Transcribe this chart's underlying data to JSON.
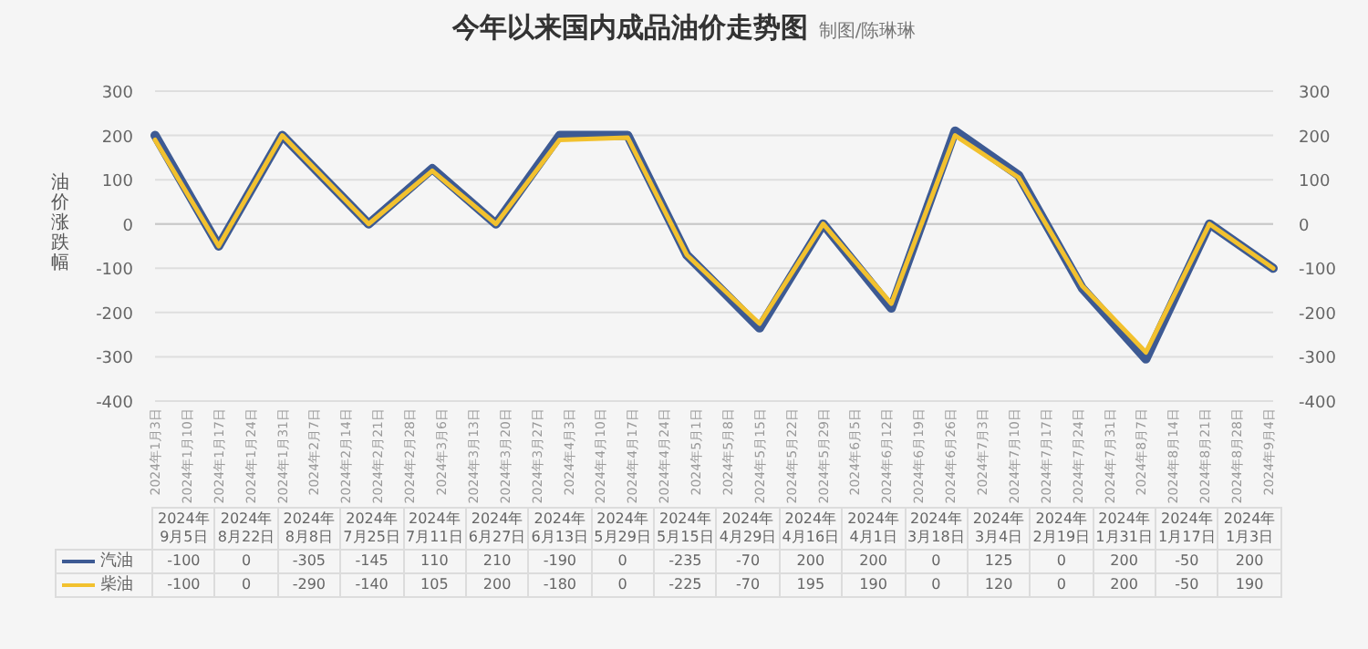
{
  "chart_data": [
    {
      "type": "line",
      "title": "今年以来国内成品油价走势图",
      "subtitle": "制图/陈琳琳",
      "ylabel": "油价涨跌幅",
      "x": [
        "2024-01-03",
        "2024-01-17",
        "2024-01-31",
        "2024-02-19",
        "2024-03-04",
        "2024-03-18",
        "2024-04-01",
        "2024-04-16",
        "2024-04-29",
        "2024-05-15",
        "2024-05-29",
        "2024-06-13",
        "2024-06-27",
        "2024-07-11",
        "2024-07-25",
        "2024-08-08",
        "2024-08-22",
        "2024-09-05"
      ],
      "series": [
        {
          "color": "#3d5a93",
          "values": [
            200,
            -50,
            200,
            0,
            125,
            0,
            200,
            200,
            -70,
            -235,
            0,
            -190,
            210,
            110,
            -145,
            -305,
            0,
            -100
          ]
        },
        {
          "color": "#f2c12e",
          "values": [
            190,
            -50,
            200,
            0,
            120,
            0,
            190,
            195,
            -70,
            -225,
            0,
            -180,
            200,
            105,
            -140,
            -290,
            0,
            -100
          ]
        }
      ],
      "xlim": [
        "2024-01-03",
        "2024-09-05"
      ],
      "xticks": [
        {
          "value": "2024-01-03",
          "label": "2024年1月3日"
        },
        {
          "value": "2024-01-10",
          "label": "2024年1月10日"
        },
        {
          "value": "2024-01-17",
          "label": "2024年1月17日"
        },
        {
          "value": "2024-01-24",
          "label": "2024年1月24日"
        },
        {
          "value": "2024-01-31",
          "label": "2024年1月31日"
        },
        {
          "value": "2024-02-07",
          "label": "2024年2月7日"
        },
        {
          "value": "2024-02-14",
          "label": "2024年2月14日"
        },
        {
          "value": "2024-02-21",
          "label": "2024年2月21日"
        },
        {
          "value": "2024-02-28",
          "label": "2024年2月28日"
        },
        {
          "value": "2024-03-06",
          "label": "2024年3月6日"
        },
        {
          "value": "2024-03-13",
          "label": "2024年3月13日"
        },
        {
          "value": "2024-03-20",
          "label": "2024年3月20日"
        },
        {
          "value": "2024-03-27",
          "label": "2024年3月27日"
        },
        {
          "value": "2024-04-03",
          "label": "2024年4月3日"
        },
        {
          "value": "2024-04-10",
          "label": "2024年4月10日"
        },
        {
          "value": "2024-04-17",
          "label": "2024年4月17日"
        },
        {
          "value": "2024-04-24",
          "label": "2024年4月24日"
        },
        {
          "value": "2024-05-01",
          "label": "2024年5月1日"
        },
        {
          "value": "2024-05-08",
          "label": "2024年5月8日"
        },
        {
          "value": "2024-05-15",
          "label": "2024年5月15日"
        },
        {
          "value": "2024-05-22",
          "label": "2024年5月22日"
        },
        {
          "value": "2024-05-29",
          "label": "2024年5月29日"
        },
        {
          "value": "2024-06-05",
          "label": "2024年6月5日"
        },
        {
          "value": "2024-06-12",
          "label": "2024年6月12日"
        },
        {
          "value": "2024-06-19",
          "label": "2024年6月19日"
        },
        {
          "value": "2024-06-26",
          "label": "2024年6月26日"
        },
        {
          "value": "2024-07-03",
          "label": "2024年7月3日"
        },
        {
          "value": "2024-07-10",
          "label": "2024年7月10日"
        },
        {
          "value": "2024-07-17",
          "label": "2024年7月17日"
        },
        {
          "value": "2024-07-24",
          "label": "2024年7月24日"
        },
        {
          "value": "2024-07-31",
          "label": "2024年7月31日"
        },
        {
          "value": "2024-08-07",
          "label": "2024年8月7日"
        },
        {
          "value": "2024-08-14",
          "label": "2024年8月14日"
        },
        {
          "value": "2024-08-21",
          "label": "2024年8月21日"
        },
        {
          "value": "2024-08-28",
          "label": "2024年8月28日"
        },
        {
          "value": "2024-09-04",
          "label": "2024年9月4日"
        }
      ],
      "ylim": [
        -400,
        300
      ],
      "yticks": [
        -400,
        -300,
        -200,
        -100,
        0,
        100,
        200,
        300
      ],
      "y2lim": [
        -400,
        300
      ],
      "y2ticks": [
        -400,
        -300,
        -200,
        -100,
        0,
        100,
        200,
        300
      ],
      "grid": "y",
      "line_style": "solid"
    },
    {
      "type": "other",
      "categories": [
        "2024年9月5日",
        "2024年8月22日",
        "2024年8月8日",
        "2024年7月25日",
        "2024年7月11日",
        "2024年6月27日",
        "2024年6月13日",
        "2024年5月29日",
        "2024年5月15日",
        "2024年4月29日",
        "2024年4月16日",
        "2024年4月1日",
        "2024年3月18日",
        "2024年3月4日",
        "2024年2月19日",
        "2024年1月31日",
        "2024年1月17日",
        "2024年1月3日"
      ],
      "series": [
        {
          "name": "汽油",
          "color": "#3d5a93",
          "values": [
            -100,
            0,
            -305,
            -145,
            110,
            210,
            -190,
            0,
            -235,
            -70,
            200,
            200,
            0,
            125,
            0,
            200,
            -50,
            200
          ]
        },
        {
          "name": "柴油",
          "color": "#f2c12e",
          "values": [
            -100,
            0,
            -290,
            -140,
            105,
            200,
            -180,
            0,
            -225,
            -70,
            195,
            190,
            0,
            120,
            0,
            200,
            -50,
            190
          ]
        }
      ],
      "legend": "left",
      "data_labels": true
    }
  ]
}
